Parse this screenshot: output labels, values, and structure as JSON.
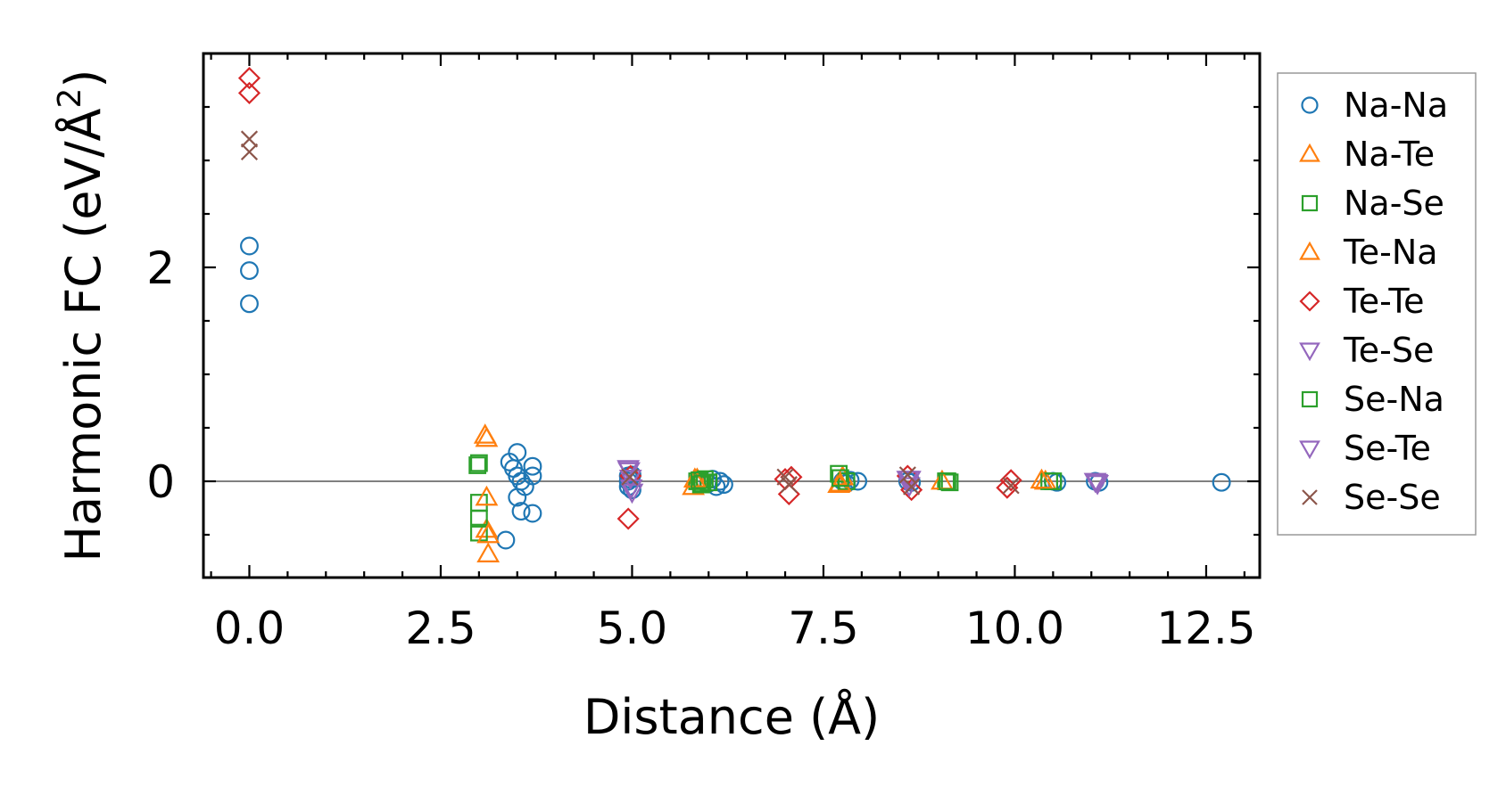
{
  "chart_data": {
    "type": "scatter",
    "title": "",
    "xlabel": "Distance (Å)",
    "ylabel_main": "Harmonic FC (eV/Å",
    "ylabel_sup": "2",
    "ylabel_close": ")",
    "xlim": [
      -0.6,
      13.2
    ],
    "ylim": [
      -0.9,
      4.0
    ],
    "xticks": [
      0.0,
      2.5,
      5.0,
      7.5,
      10.0,
      12.5
    ],
    "xtick_labels": [
      "0.0",
      "2.5",
      "5.0",
      "7.5",
      "10.0",
      "12.5"
    ],
    "yticks": [
      0,
      2
    ],
    "ytick_labels": [
      "0",
      "2"
    ],
    "zero_line": true,
    "legend_position": "outside-right",
    "series": [
      {
        "name": "Na-Na",
        "marker": "circle",
        "color": "#1f77b4",
        "x": [
          0,
          0,
          0,
          3.35,
          3.4,
          3.45,
          3.5,
          3.5,
          3.5,
          3.55,
          3.55,
          3.6,
          3.7,
          3.7,
          3.7,
          4.95,
          4.95,
          4.95,
          4.97,
          5.0,
          5.0,
          6.0,
          6.05,
          6.1,
          6.15,
          6.2,
          7.75,
          7.8,
          7.85,
          7.95,
          8.6,
          8.65,
          10.5,
          10.55,
          11.05,
          11.1,
          12.7
        ],
        "y": [
          2.2,
          1.97,
          1.66,
          -0.55,
          0.18,
          0.12,
          0.27,
          0.05,
          -0.15,
          -0.28,
          0.0,
          -0.05,
          0.14,
          0.05,
          -0.3,
          0.05,
          0.0,
          -0.05,
          0.02,
          -0.08,
          0.06,
          -0.02,
          0.02,
          -0.05,
          0.0,
          -0.03,
          0.0,
          -0.02,
          0.01,
          0.0,
          0.0,
          -0.01,
          0.0,
          -0.01,
          0.0,
          -0.01,
          -0.01
        ]
      },
      {
        "name": "Na-Te",
        "marker": "triangle-up",
        "color": "#ff7f0e",
        "x": [
          3.1,
          3.1,
          3.12,
          5.8,
          5.85,
          7.7,
          7.75,
          10.4
        ],
        "y": [
          0.4,
          -0.45,
          -0.68,
          -0.05,
          0.02,
          -0.03,
          0.04,
          0.0
        ]
      },
      {
        "name": "Na-Se",
        "marker": "square",
        "color": "#2ca02c",
        "x": [
          3.0,
          3.0,
          3.0,
          3.0,
          5.85,
          5.9,
          5.95,
          6.0,
          7.7,
          7.8,
          9.1,
          9.15,
          10.45,
          10.5
        ],
        "y": [
          0.17,
          -0.2,
          -0.35,
          -0.48,
          0.0,
          -0.03,
          0.02,
          -0.01,
          0.07,
          0.0,
          0.0,
          -0.01,
          0.0,
          0.0
        ]
      },
      {
        "name": "Te-Na",
        "marker": "triangle-up",
        "color": "#ff7f0e",
        "x": [
          3.08,
          3.1,
          3.12,
          5.82,
          7.72,
          9.05,
          10.35
        ],
        "y": [
          0.43,
          -0.15,
          -0.5,
          0.02,
          -0.02,
          0.0,
          0.01
        ]
      },
      {
        "name": "Te-Te",
        "marker": "diamond",
        "color": "#d62728",
        "x": [
          0,
          0,
          4.95,
          4.98,
          7.0,
          7.05,
          7.08,
          8.6,
          8.65,
          9.9,
          9.95
        ],
        "y": [
          3.77,
          3.63,
          -0.35,
          0.05,
          0.02,
          -0.12,
          0.04,
          0.05,
          -0.08,
          -0.06,
          0.01
        ]
      },
      {
        "name": "Te-Se",
        "marker": "triangle-down",
        "color": "#9467bd",
        "x": [
          4.95,
          4.98,
          5.0,
          8.6,
          8.62,
          11.05,
          11.08
        ],
        "y": [
          0.12,
          0.03,
          -0.1,
          0.02,
          -0.04,
          0.0,
          -0.02
        ]
      },
      {
        "name": "Se-Na",
        "marker": "square",
        "color": "#2ca02c",
        "x": [
          2.98,
          5.88,
          5.92,
          7.72,
          9.12
        ],
        "y": [
          0.15,
          0.01,
          -0.02,
          0.03,
          0.0
        ]
      },
      {
        "name": "Se-Te",
        "marker": "triangle-down",
        "color": "#9467bd",
        "x": [
          4.96,
          4.99,
          8.63,
          11.07
        ],
        "y": [
          0.1,
          -0.06,
          0.02,
          -0.01
        ]
      },
      {
        "name": "Se-Se",
        "marker": "x",
        "color": "#8c564b",
        "x": [
          0,
          0,
          4.97,
          7.0,
          7.05,
          8.6,
          8.65,
          9.95
        ],
        "y": [
          3.2,
          3.08,
          0.04,
          0.04,
          -0.03,
          0.06,
          -0.05,
          -0.04
        ]
      }
    ]
  }
}
